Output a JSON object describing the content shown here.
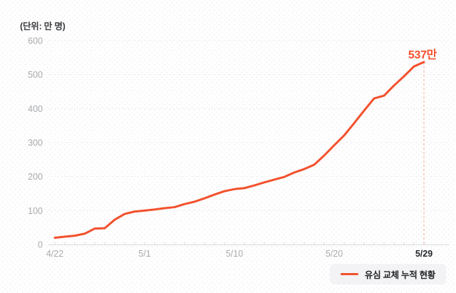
{
  "unit_label": "(단위: 만 명)",
  "annotation": {
    "text": "537만"
  },
  "legend": {
    "label": "유심 교체 누적 현황"
  },
  "colors": {
    "line": "#f2512d",
    "muted_label": "#a8aaad",
    "dark_label": "#242629",
    "grid": "#e8e8ea",
    "axis": "#d9dadc",
    "legend_bg": "#f3f3f5",
    "unit_text": "#3b3d40"
  },
  "chart_data": {
    "type": "line",
    "title": "유심 교체 누적 현황",
    "unit": "만 명",
    "series_name": "유심 교체 누적 현황",
    "x": [
      "4/22",
      "4/23",
      "4/24",
      "4/25",
      "4/26",
      "4/27",
      "4/28",
      "4/29",
      "4/30",
      "5/1",
      "5/2",
      "5/3",
      "5/4",
      "5/5",
      "5/6",
      "5/7",
      "5/8",
      "5/9",
      "5/10",
      "5/11",
      "5/12",
      "5/13",
      "5/14",
      "5/15",
      "5/16",
      "5/17",
      "5/18",
      "5/19",
      "5/20",
      "5/21",
      "5/22",
      "5/23",
      "5/24",
      "5/25",
      "5/26",
      "5/27",
      "5/28",
      "5/29"
    ],
    "values": [
      20,
      23,
      26,
      32,
      47,
      48,
      73,
      90,
      97,
      100,
      103,
      107,
      110,
      119,
      126,
      136,
      147,
      157,
      163,
      166,
      174,
      183,
      191,
      199,
      212,
      222,
      235,
      262,
      292,
      321,
      357,
      394,
      430,
      438,
      468,
      495,
      524,
      537
    ],
    "x_tick_labels": [
      "4/22",
      "5/1",
      "5/10",
      "5/20",
      "5/29"
    ],
    "y_ticks": [
      0,
      100,
      200,
      300,
      400,
      500,
      600
    ],
    "ylim": [
      0,
      600
    ],
    "grid": "horizontal-dotted",
    "legend_position": "bottom-right",
    "last_point_label": "537만"
  }
}
